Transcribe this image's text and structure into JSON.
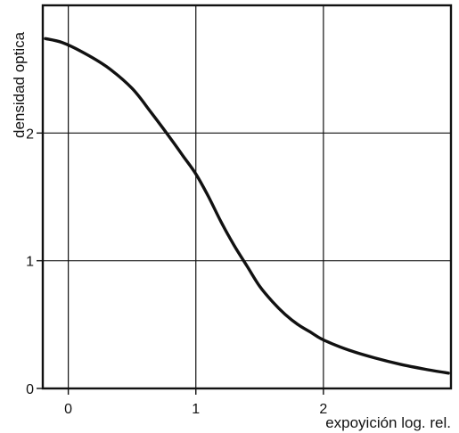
{
  "chart_data": {
    "type": "line",
    "title": "",
    "xlabel": "expoyición log. rel.",
    "ylabel": "densidad optica",
    "xlim": [
      -0.2,
      3.0
    ],
    "ylim": [
      0,
      3.0
    ],
    "x_ticks": [
      0,
      1,
      2
    ],
    "x_tick_labels": [
      "0",
      "1",
      "2"
    ],
    "y_ticks": [
      0,
      1,
      2
    ],
    "y_tick_labels": [
      "0",
      "1",
      "2"
    ],
    "grid": true,
    "legend": "none",
    "series": [
      {
        "x": [
          -0.18,
          -0.05,
          0.1,
          0.3,
          0.5,
          0.65,
          0.8,
          0.9,
          1.0,
          1.1,
          1.2,
          1.3,
          1.4,
          1.5,
          1.6,
          1.7,
          1.8,
          1.9,
          2.0,
          2.2,
          2.4,
          2.6,
          2.8,
          2.98
        ],
        "values": [
          2.74,
          2.71,
          2.64,
          2.52,
          2.35,
          2.16,
          1.96,
          1.82,
          1.68,
          1.5,
          1.3,
          1.12,
          0.96,
          0.8,
          0.68,
          0.58,
          0.5,
          0.44,
          0.38,
          0.3,
          0.24,
          0.19,
          0.15,
          0.12
        ],
        "color": "#111111"
      }
    ]
  }
}
